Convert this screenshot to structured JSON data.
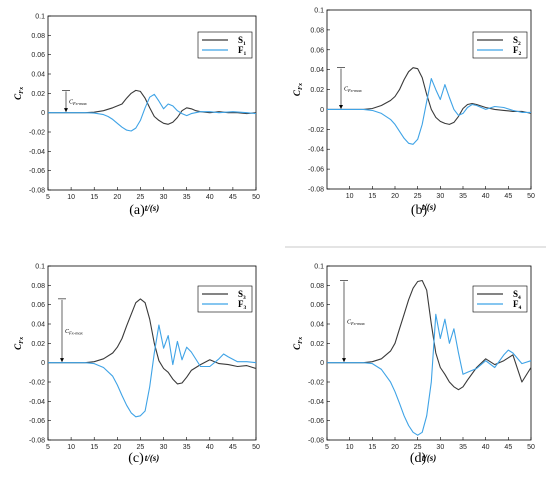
{
  "colors": {
    "S": "#3a3a3a",
    "F": "#3fa3e6",
    "rule": "#b8b8b8"
  },
  "chart_data": [
    {
      "type": "line",
      "caption": "(a)",
      "ylabel_main": "C",
      "ylabel_sub": "Fx",
      "xlabel": "t/(s)",
      "annotation_main": "C",
      "annotation_sub": "Fx-max",
      "xlim": [
        5,
        50
      ],
      "ylim": [
        -0.08,
        0.1
      ],
      "xticks": [
        5,
        10,
        15,
        20,
        25,
        30,
        35,
        40,
        45,
        50
      ],
      "yticks": [
        -0.08,
        -0.06,
        -0.04,
        -0.02,
        0,
        0.02,
        0.04,
        0.06,
        0.08,
        0.1
      ],
      "legend": "top-right",
      "series": [
        {
          "name": "S",
          "sub": "1",
          "x": [
            5,
            10,
            13,
            15,
            17,
            19,
            21,
            22,
            23,
            24,
            25,
            26,
            27,
            28,
            29,
            30,
            31,
            32,
            33,
            34,
            35,
            36,
            37,
            38,
            40,
            42,
            44,
            46,
            48,
            50
          ],
          "y": [
            0,
            0,
            0,
            0.0005,
            0.002,
            0.005,
            0.009,
            0.015,
            0.02,
            0.023,
            0.022,
            0.015,
            0.005,
            -0.004,
            -0.008,
            -0.011,
            -0.012,
            -0.01,
            -0.005,
            0.002,
            0.005,
            0.004,
            0.002,
            0.001,
            0,
            0.001,
            0,
            0,
            -0.001,
            0
          ]
        },
        {
          "name": "F",
          "sub": "1",
          "x": [
            5,
            10,
            13,
            15,
            17,
            18,
            19,
            20,
            21,
            22,
            23,
            24,
            25,
            26,
            27,
            28,
            29,
            30,
            31,
            32,
            33,
            34,
            35,
            36,
            38,
            40,
            42,
            45,
            48,
            50
          ],
          "y": [
            0,
            0,
            0,
            -0.0005,
            -0.002,
            -0.004,
            -0.007,
            -0.011,
            -0.015,
            -0.018,
            -0.019,
            -0.016,
            -0.008,
            0.005,
            0.016,
            0.019,
            0.012,
            0.004,
            0.009,
            0.007,
            0.002,
            -0.001,
            -0.003,
            -0.001,
            0.001,
            0.001,
            0,
            0.001,
            0,
            -0.001
          ]
        }
      ]
    },
    {
      "type": "line",
      "caption": "(b)",
      "ylabel_main": "C",
      "ylabel_sub": "Fx",
      "xlabel": "t/(s)",
      "annotation_main": "C",
      "annotation_sub": "Fx-max",
      "xlim": [
        5,
        50
      ],
      "ylim": [
        -0.08,
        0.1
      ],
      "xticks": [
        10,
        15,
        20,
        25,
        30,
        35,
        40,
        45,
        50
      ],
      "yticks": [
        -0.08,
        -0.06,
        -0.04,
        -0.02,
        0,
        0.02,
        0.04,
        0.06,
        0.08,
        0.1
      ],
      "legend": "top-right",
      "series": [
        {
          "name": "S",
          "sub": "2",
          "x": [
            5,
            10,
            13,
            15,
            17,
            19,
            20,
            21,
            22,
            23,
            24,
            25,
            26,
            27,
            28,
            29,
            30,
            31,
            32,
            33,
            34,
            35,
            36,
            37,
            38,
            40,
            42,
            44,
            46,
            48,
            50
          ],
          "y": [
            0,
            0,
            0,
            0.001,
            0.004,
            0.009,
            0.013,
            0.02,
            0.03,
            0.038,
            0.042,
            0.041,
            0.032,
            0.015,
            0,
            -0.008,
            -0.012,
            -0.014,
            -0.015,
            -0.013,
            -0.007,
            0.001,
            0.005,
            0.006,
            0.005,
            0.002,
            0,
            -0.001,
            -0.002,
            -0.002,
            -0.004
          ]
        },
        {
          "name": "F",
          "sub": "2",
          "x": [
            5,
            10,
            13,
            15,
            17,
            19,
            20,
            21,
            22,
            23,
            24,
            25,
            26,
            27,
            28,
            29,
            30,
            31,
            32,
            33,
            34,
            35,
            36,
            37,
            38,
            40,
            42,
            44,
            46,
            48,
            50
          ],
          "y": [
            0,
            0,
            0,
            -0.001,
            -0.004,
            -0.01,
            -0.015,
            -0.022,
            -0.029,
            -0.034,
            -0.035,
            -0.03,
            -0.015,
            0.008,
            0.031,
            0.02,
            0.01,
            0.025,
            0.012,
            0,
            -0.006,
            -0.004,
            0.002,
            0.005,
            0.004,
            0,
            0.003,
            0.002,
            -0.001,
            -0.003,
            -0.003
          ]
        }
      ]
    },
    {
      "type": "line",
      "caption": "(c)",
      "ylabel_main": "C",
      "ylabel_sub": "Fx",
      "xlabel": "t/(s)",
      "annotation_main": "C",
      "annotation_sub": "Fx-max",
      "xlim": [
        5,
        50
      ],
      "ylim": [
        -0.08,
        0.1
      ],
      "xticks": [
        5,
        10,
        15,
        20,
        25,
        30,
        35,
        40,
        45,
        50
      ],
      "yticks": [
        -0.08,
        -0.06,
        -0.04,
        -0.02,
        0,
        0.02,
        0.04,
        0.06,
        0.08,
        0.1
      ],
      "legend": "top-right",
      "series": [
        {
          "name": "S",
          "sub": "3",
          "x": [
            5,
            10,
            13,
            15,
            17,
            19,
            20,
            21,
            22,
            23,
            24,
            25,
            26,
            27,
            28,
            29,
            30,
            31,
            32,
            33,
            34,
            35,
            36,
            38,
            40,
            42,
            44,
            46,
            48,
            50
          ],
          "y": [
            0,
            0,
            0,
            0.001,
            0.004,
            0.01,
            0.016,
            0.025,
            0.038,
            0.05,
            0.062,
            0.066,
            0.062,
            0.045,
            0.02,
            0.002,
            -0.006,
            -0.01,
            -0.017,
            -0.022,
            -0.021,
            -0.015,
            -0.008,
            -0.002,
            0.003,
            -0.001,
            -0.002,
            -0.004,
            -0.003,
            -0.006
          ]
        },
        {
          "name": "F",
          "sub": "3",
          "x": [
            5,
            10,
            13,
            15,
            17,
            19,
            20,
            21,
            22,
            23,
            24,
            25,
            26,
            27,
            28,
            29,
            30,
            31,
            32,
            33,
            34,
            35,
            36,
            38,
            40,
            42,
            43,
            44,
            46,
            48,
            50
          ],
          "y": [
            0,
            0,
            0,
            -0.001,
            -0.005,
            -0.014,
            -0.023,
            -0.034,
            -0.044,
            -0.052,
            -0.056,
            -0.055,
            -0.05,
            -0.025,
            0.01,
            0.039,
            0.015,
            0.028,
            -0.002,
            0.022,
            0.003,
            0.016,
            0.011,
            -0.004,
            -0.004,
            0.004,
            0.009,
            0.006,
            0.001,
            0.001,
            0
          ]
        }
      ]
    },
    {
      "type": "line",
      "caption": "(d)",
      "ylabel_main": "C",
      "ylabel_sub": "Fx",
      "xlabel": "t/(s)",
      "annotation_main": "C",
      "annotation_sub": "Fx-max",
      "xlim": [
        5,
        50
      ],
      "ylim": [
        -0.08,
        0.1
      ],
      "xticks": [
        5,
        10,
        15,
        20,
        25,
        30,
        35,
        40,
        45,
        50
      ],
      "yticks": [
        -0.08,
        -0.06,
        -0.04,
        -0.02,
        0,
        0.02,
        0.04,
        0.06,
        0.08,
        0.1
      ],
      "legend": "top-right",
      "series": [
        {
          "name": "S",
          "sub": "4",
          "x": [
            5,
            10,
            13,
            15,
            17,
            19,
            20,
            21,
            22,
            23,
            24,
            25,
            26,
            27,
            28,
            29,
            30,
            31,
            32,
            33,
            34,
            35,
            36,
            38,
            40,
            42,
            44,
            46,
            48,
            50
          ],
          "y": [
            0,
            0,
            0,
            0.001,
            0.004,
            0.012,
            0.02,
            0.035,
            0.05,
            0.065,
            0.077,
            0.084,
            0.085,
            0.075,
            0.04,
            0.01,
            -0.005,
            -0.012,
            -0.02,
            -0.025,
            -0.028,
            -0.025,
            -0.018,
            -0.005,
            0.004,
            -0.002,
            0.002,
            0.008,
            -0.02,
            -0.005
          ]
        },
        {
          "name": "F",
          "sub": "4",
          "x": [
            5,
            10,
            13,
            15,
            17,
            19,
            20,
            21,
            22,
            23,
            24,
            25,
            26,
            27,
            28,
            29,
            30,
            31,
            32,
            33,
            34,
            35,
            36,
            38,
            40,
            42,
            44,
            45,
            46,
            48,
            50
          ],
          "y": [
            0,
            0,
            0,
            -0.001,
            -0.007,
            -0.02,
            -0.03,
            -0.042,
            -0.055,
            -0.065,
            -0.072,
            -0.075,
            -0.072,
            -0.055,
            -0.02,
            0.05,
            0.025,
            0.045,
            0.02,
            0.035,
            0.01,
            -0.012,
            -0.01,
            -0.006,
            0.002,
            -0.005,
            0.008,
            0.013,
            0.01,
            -0.001,
            0.002
          ]
        }
      ]
    }
  ]
}
